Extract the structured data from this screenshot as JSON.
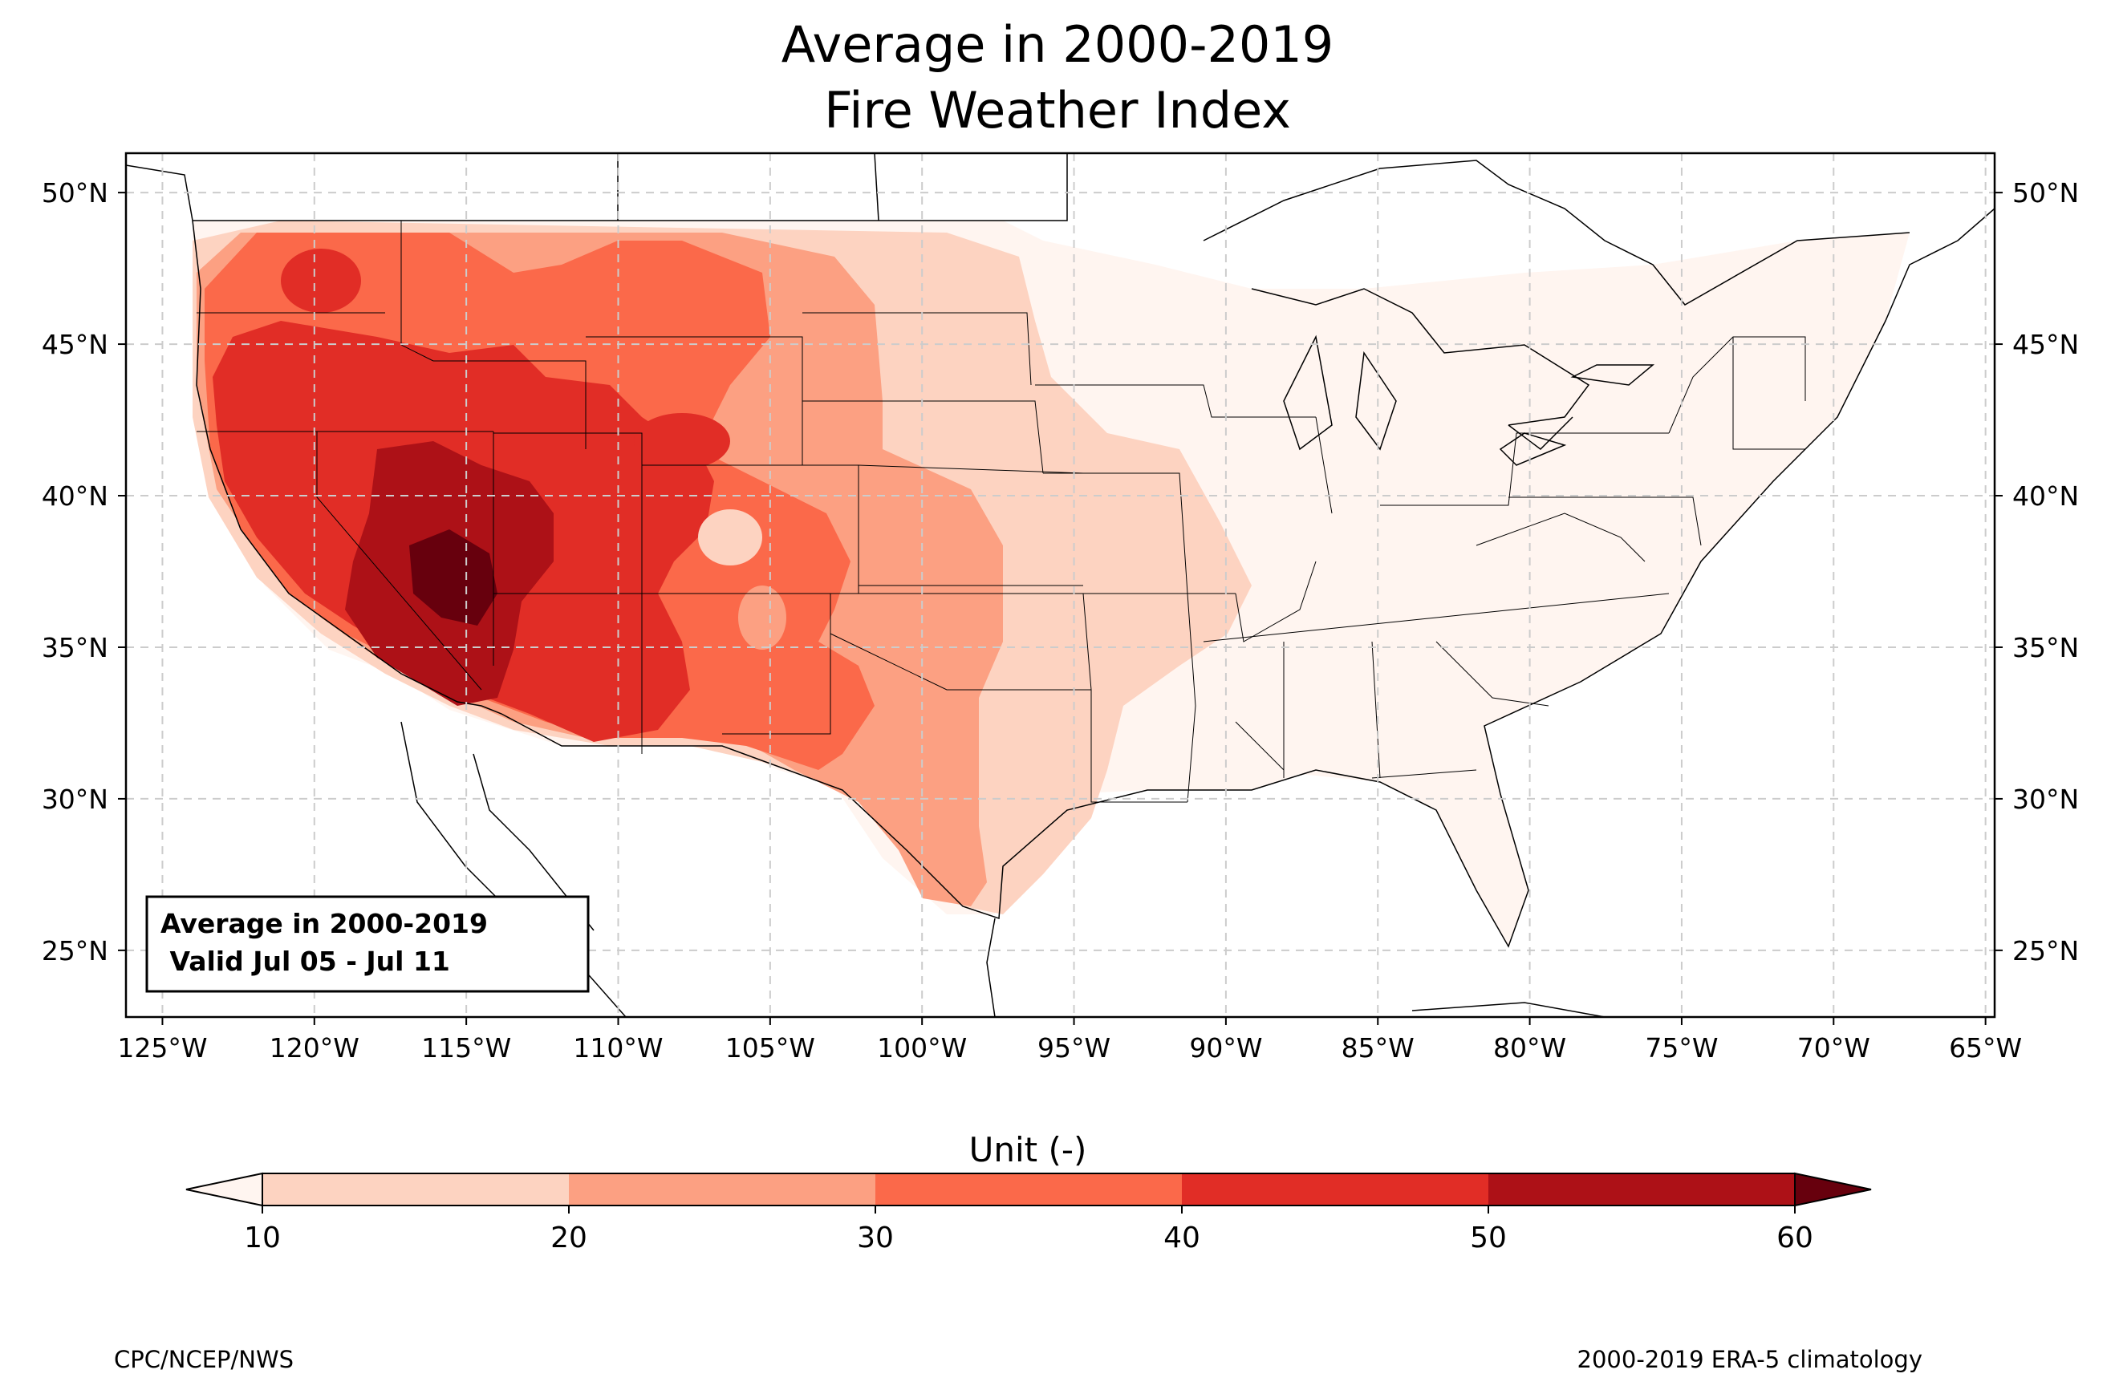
{
  "title": {
    "line1": "Average in 2000-2019",
    "line2": "Fire Weather Index"
  },
  "map": {
    "lat_labels": [
      "50°N",
      "45°N",
      "40°N",
      "35°N",
      "30°N",
      "25°N"
    ],
    "lat_values": [
      50,
      45,
      40,
      35,
      30,
      25
    ],
    "lon_labels": [
      "125°W",
      "120°W",
      "115°W",
      "110°W",
      "105°W",
      "100°W",
      "95°W",
      "90°W",
      "85°W",
      "80°W",
      "75°W",
      "70°W",
      "65°W"
    ],
    "lon_values": [
      -125,
      -120,
      -115,
      -110,
      -105,
      -100,
      -95,
      -90,
      -85,
      -80,
      -75,
      -70,
      -65
    ],
    "lon_range": [
      -126.2,
      -64.7
    ],
    "lat_range": [
      22.8,
      51.3
    ],
    "grid": "dashed"
  },
  "info_box": {
    "line1": "Average in 2000-2019",
    "line2": " Valid Jul 05 - Jul 11"
  },
  "colorbar": {
    "label": "Unit (-)",
    "ticks": [
      "10",
      "20",
      "30",
      "40",
      "50",
      "60"
    ],
    "level_values": [
      10,
      20,
      30,
      40,
      50,
      60
    ],
    "colors": {
      "under": "#fff5f0",
      "c10_20": "#fdd3c1",
      "c20_30": "#fca082",
      "c30_40": "#fb694a",
      "c40_50": "#e12d26",
      "c50_60": "#ad1117",
      "over": "#67000d"
    },
    "extend": "both"
  },
  "footer": {
    "left": "CPC/NCEP/NWS",
    "right": "2000-2019 ERA-5 climatology"
  }
}
